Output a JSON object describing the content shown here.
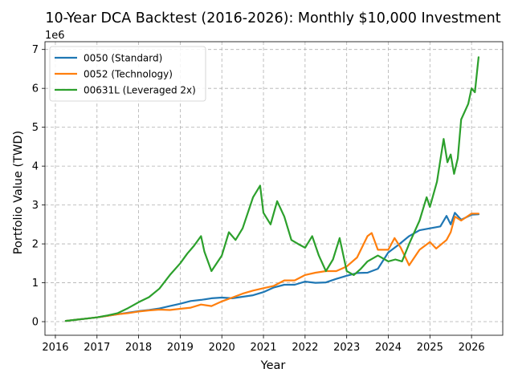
{
  "chart_data": {
    "type": "line",
    "title": "10-Year DCA Backtest (2016-2026): Monthly $10,000 Investment",
    "xlabel": "Year",
    "ylabel": "Portfolio Value (TWD)",
    "y_offset_label": "1e6",
    "xlim": [
      2015.75,
      2026.75
    ],
    "ylim": [
      -0.35,
      7.2
    ],
    "x_ticks": [
      2016,
      2017,
      2018,
      2019,
      2020,
      2021,
      2022,
      2023,
      2024,
      2025,
      2026
    ],
    "x_tick_labels": [
      "2016",
      "2017",
      "2018",
      "2019",
      "2020",
      "2021",
      "2022",
      "2023",
      "2024",
      "2025",
      "2026"
    ],
    "y_ticks": [
      0,
      1,
      2,
      3,
      4,
      5,
      6,
      7
    ],
    "y_tick_labels": [
      "0",
      "1",
      "2",
      "3",
      "4",
      "5",
      "6",
      "7"
    ],
    "grid": true,
    "legend_position": "top-left",
    "series": [
      {
        "name": "0050 (Standard)",
        "color": "#1f77b4",
        "x": [
          2016.25,
          2016.5,
          2016.75,
          2017.0,
          2017.25,
          2017.5,
          2017.75,
          2018.0,
          2018.25,
          2018.5,
          2018.75,
          2019.0,
          2019.25,
          2019.5,
          2019.75,
          2020.0,
          2020.25,
          2020.5,
          2020.75,
          2021.0,
          2021.25,
          2021.5,
          2021.75,
          2022.0,
          2022.25,
          2022.5,
          2022.75,
          2023.0,
          2023.25,
          2023.5,
          2023.75,
          2024.0,
          2024.25,
          2024.5,
          2024.75,
          2025.0,
          2025.25,
          2025.4,
          2025.5,
          2025.6,
          2025.75,
          2026.0,
          2026.17
        ],
        "values": [
          0.02,
          0.05,
          0.08,
          0.11,
          0.15,
          0.19,
          0.23,
          0.27,
          0.3,
          0.34,
          0.4,
          0.46,
          0.53,
          0.56,
          0.6,
          0.62,
          0.6,
          0.64,
          0.68,
          0.76,
          0.88,
          0.95,
          0.95,
          1.03,
          1.0,
          1.01,
          1.1,
          1.18,
          1.25,
          1.26,
          1.36,
          1.78,
          1.98,
          2.2,
          2.35,
          2.4,
          2.45,
          2.72,
          2.5,
          2.8,
          2.62,
          2.75,
          2.76
        ]
      },
      {
        "name": "0052 (Technology)",
        "color": "#ff7f0e",
        "x": [
          2016.25,
          2016.5,
          2016.75,
          2017.0,
          2017.25,
          2017.5,
          2017.75,
          2018.0,
          2018.25,
          2018.5,
          2018.75,
          2019.0,
          2019.25,
          2019.5,
          2019.75,
          2020.0,
          2020.25,
          2020.5,
          2020.75,
          2021.0,
          2021.25,
          2021.5,
          2021.75,
          2022.0,
          2022.25,
          2022.5,
          2022.75,
          2023.0,
          2023.25,
          2023.5,
          2023.6,
          2023.75,
          2024.0,
          2024.15,
          2024.3,
          2024.5,
          2024.75,
          2025.0,
          2025.15,
          2025.4,
          2025.5,
          2025.6,
          2025.75,
          2026.0,
          2026.17
        ],
        "values": [
          0.02,
          0.05,
          0.08,
          0.11,
          0.15,
          0.19,
          0.22,
          0.26,
          0.29,
          0.31,
          0.3,
          0.33,
          0.36,
          0.44,
          0.4,
          0.52,
          0.62,
          0.72,
          0.8,
          0.86,
          0.92,
          1.06,
          1.06,
          1.2,
          1.26,
          1.3,
          1.3,
          1.42,
          1.65,
          2.2,
          2.28,
          1.85,
          1.85,
          2.15,
          1.9,
          1.45,
          1.85,
          2.05,
          1.88,
          2.1,
          2.3,
          2.7,
          2.6,
          2.78,
          2.78
        ]
      },
      {
        "name": "00631L (Leveraged 2x)",
        "color": "#2ca02c",
        "x": [
          2016.25,
          2016.5,
          2016.75,
          2017.0,
          2017.25,
          2017.5,
          2017.75,
          2018.0,
          2018.25,
          2018.5,
          2018.75,
          2019.0,
          2019.17,
          2019.33,
          2019.5,
          2019.58,
          2019.75,
          2020.0,
          2020.17,
          2020.33,
          2020.5,
          2020.75,
          2020.92,
          2021.0,
          2021.17,
          2021.33,
          2021.5,
          2021.67,
          2021.83,
          2022.0,
          2022.17,
          2022.33,
          2022.5,
          2022.67,
          2022.83,
          2023.0,
          2023.17,
          2023.33,
          2023.5,
          2023.75,
          2024.0,
          2024.17,
          2024.33,
          2024.5,
          2024.75,
          2024.92,
          2025.0,
          2025.17,
          2025.33,
          2025.42,
          2025.5,
          2025.58,
          2025.67,
          2025.75,
          2025.92,
          2026.0,
          2026.08,
          2026.17
        ],
        "values": [
          0.02,
          0.05,
          0.08,
          0.11,
          0.16,
          0.22,
          0.35,
          0.5,
          0.63,
          0.85,
          1.2,
          1.5,
          1.75,
          1.95,
          2.2,
          1.8,
          1.3,
          1.7,
          2.3,
          2.1,
          2.4,
          3.2,
          3.5,
          2.8,
          2.5,
          3.1,
          2.7,
          2.1,
          2.0,
          1.9,
          2.2,
          1.7,
          1.3,
          1.6,
          2.15,
          1.3,
          1.2,
          1.35,
          1.55,
          1.7,
          1.55,
          1.6,
          1.55,
          2.0,
          2.6,
          3.2,
          2.95,
          3.6,
          4.7,
          4.1,
          4.3,
          3.8,
          4.2,
          5.2,
          5.6,
          6.0,
          5.9,
          6.8
        ]
      }
    ]
  }
}
